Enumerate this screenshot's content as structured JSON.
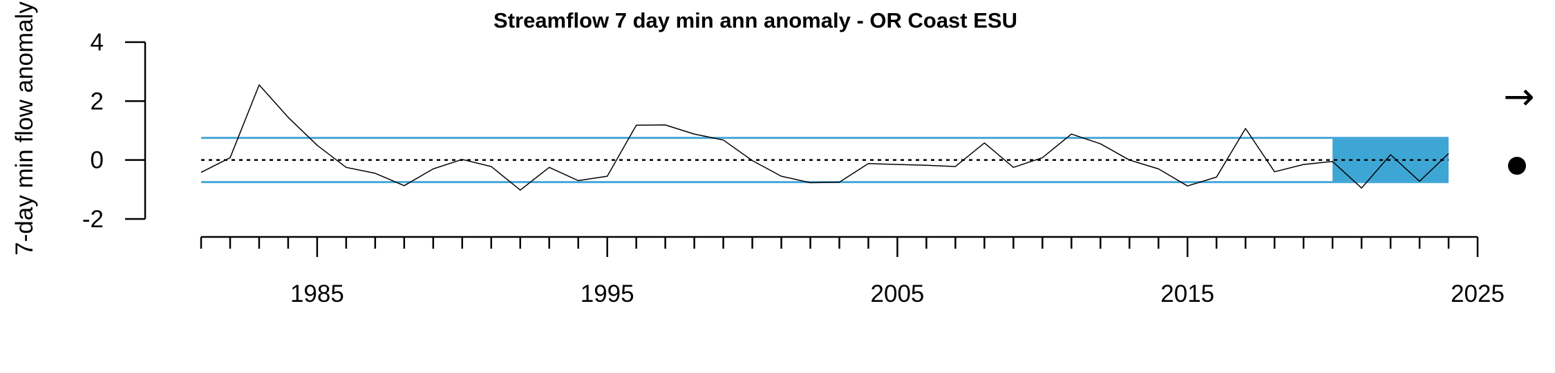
{
  "chart_data": {
    "type": "line",
    "title": "Streamflow 7 day min ann anomaly - OR Coast ESU",
    "xlabel": "",
    "ylabel": "7-day min flow anomaly",
    "xlim": [
      1981,
      2025
    ],
    "ylim": [
      -2,
      4
    ],
    "x_tick_labels": [
      1985,
      1995,
      2005,
      2015,
      2025
    ],
    "y_tick_labels": [
      -2,
      0,
      2,
      4
    ],
    "x_minor_ticks": [
      1981,
      1982,
      1983,
      1984,
      1985,
      1986,
      1987,
      1988,
      1989,
      1990,
      1991,
      1992,
      1993,
      1994,
      1995,
      1996,
      1997,
      1998,
      1999,
      2000,
      2001,
      2002,
      2003,
      2004,
      2005,
      2006,
      2007,
      2008,
      2009,
      2010,
      2011,
      2012,
      2013,
      2014,
      2015,
      2016,
      2017,
      2018,
      2019,
      2020,
      2021,
      2022,
      2023,
      2024,
      2025
    ],
    "mean_line": 0,
    "sd_lines": [
      0.75,
      -0.75
    ],
    "recent_window": [
      2020,
      2024
    ],
    "trend_symbol": "→",
    "mean_symbol": "●",
    "colors": {
      "line": "#000000",
      "sd": "#46a8d8",
      "highlight": "#3ea6d4",
      "mean": "#000000"
    },
    "grid": false,
    "series": [
      {
        "x": [
          1981,
          1982,
          1983,
          1984,
          1985,
          1986,
          1987,
          1988,
          1989,
          1990,
          1991,
          1992,
          1993,
          1994,
          1995,
          1996,
          1997,
          1998,
          1999,
          2000,
          2001,
          2002,
          2003,
          2004,
          2005,
          2006,
          2007,
          2008,
          2009,
          2010,
          2011,
          2012,
          2013,
          2014,
          2015,
          2016,
          2017,
          2018,
          2019,
          2020,
          2021,
          2022,
          2023,
          2024
        ],
        "values": [
          -0.42,
          0.08,
          2.55,
          1.45,
          0.5,
          -0.25,
          -0.45,
          -0.87,
          -0.3,
          0.02,
          -0.22,
          -1.02,
          -0.25,
          -0.7,
          -0.55,
          1.18,
          1.19,
          0.88,
          0.68,
          -0.02,
          -0.55,
          -0.77,
          -0.75,
          -0.12,
          -0.15,
          -0.18,
          -0.22,
          0.58,
          -0.25,
          0.08,
          0.88,
          0.55,
          0.0,
          -0.3,
          -0.88,
          -0.58,
          1.07,
          -0.4,
          -0.15,
          -0.05,
          -0.95,
          0.18,
          -0.72,
          0.22
        ]
      }
    ]
  }
}
